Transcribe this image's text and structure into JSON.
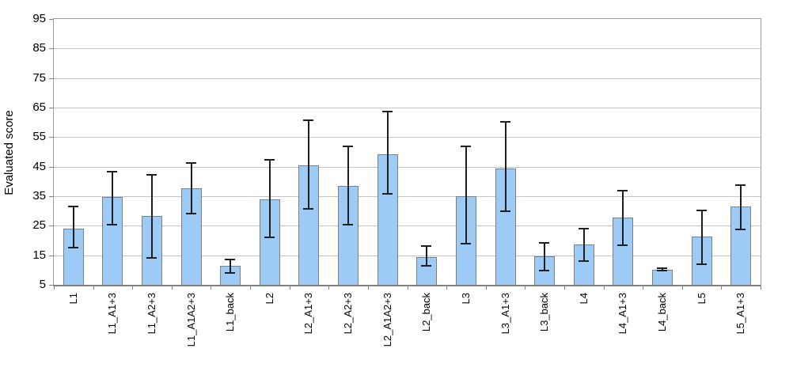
{
  "chart_data": {
    "type": "bar",
    "title": "",
    "xlabel": "",
    "ylabel": "Evaluated score",
    "ylim": [
      5,
      95
    ],
    "yticks": [
      5,
      15,
      25,
      35,
      45,
      55,
      65,
      75,
      85,
      95
    ],
    "grid": "horizontal",
    "legend": "none",
    "categories": [
      "L1",
      "L1_A1+3",
      "L1_A2+3",
      "L1_A1A2+3",
      "L1_back",
      "L2",
      "L2_A1+3",
      "L2_A2+3",
      "L2_A1A2+3",
      "L2_back",
      "L3",
      "L3_A1+3",
      "L3_back",
      "L4",
      "L4_A1+3",
      "L4_back",
      "L5",
      "L5_A1+3"
    ],
    "values": [
      24.0,
      34.7,
      28.4,
      37.7,
      11.4,
      34.0,
      45.4,
      38.4,
      49.3,
      14.5,
      35.0,
      44.5,
      14.6,
      18.6,
      27.7,
      10.1,
      21.3,
      31.5
    ],
    "error_high": [
      31.5,
      43.3,
      42.3,
      46.2,
      13.6,
      47.3,
      60.7,
      51.8,
      63.7,
      18.1,
      51.8,
      60.2,
      19.2,
      24.0,
      36.8,
      10.5,
      30.3,
      38.8
    ],
    "error_low": [
      17.5,
      25.3,
      14.0,
      29.0,
      9.0,
      21.0,
      30.6,
      25.3,
      35.7,
      11.4,
      19.0,
      29.8,
      9.8,
      13.0,
      18.4,
      9.7,
      12.0,
      23.8
    ],
    "colors": {
      "bar_fill": "#9ECBF5",
      "bar_border": "#7F7F7F",
      "error_bar": "#1F1F1F",
      "gridline": "#C4C4C4",
      "plot_border": "#9E9E9E",
      "axis": "#808080",
      "text": "#000000",
      "background": "#FFFFFF"
    }
  }
}
